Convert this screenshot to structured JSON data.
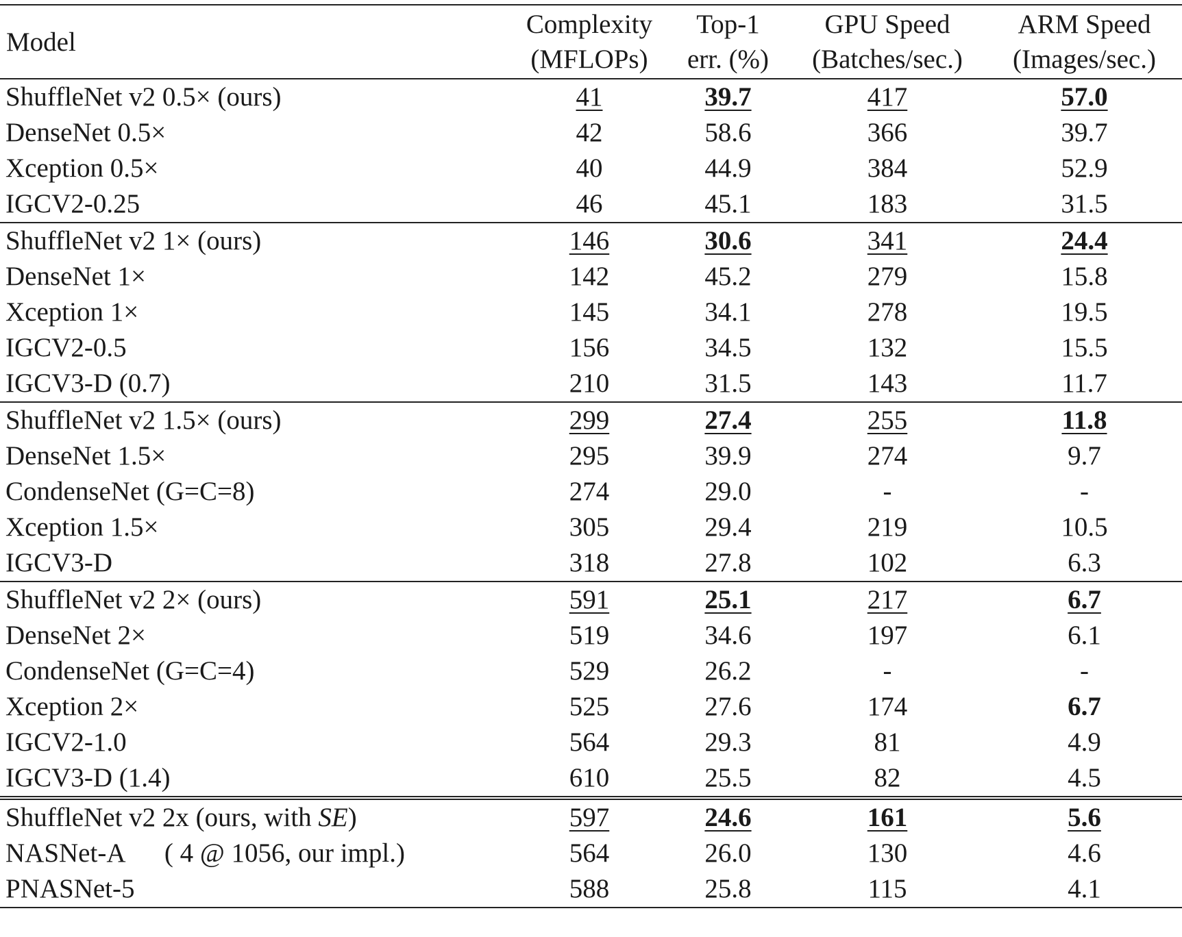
{
  "table": {
    "header": [
      "Model",
      [
        "Complexity",
        "(MFLOPs)"
      ],
      [
        "Top-1",
        "err. (%)"
      ],
      [
        "GPU Speed",
        "(Batches/sec.)"
      ],
      [
        "ARM Speed",
        "(Images/sec.)"
      ]
    ],
    "groups": [
      {
        "rows": [
          [
            "ShuffleNet v2 0.5× (ours)",
            {
              "text": "41",
              "underline": true
            },
            {
              "text": "39.7",
              "bold": true,
              "underline": true
            },
            {
              "text": "417",
              "underline": true
            },
            {
              "text": "57.0",
              "bold": true,
              "underline": true
            }
          ],
          [
            "DenseNet 0.5×",
            "42",
            "58.6",
            "366",
            "39.7"
          ],
          [
            "Xception 0.5×",
            "40",
            "44.9",
            "384",
            "52.9"
          ],
          [
            "IGCV2-0.25",
            "46",
            "45.1",
            "183",
            "31.5"
          ]
        ]
      },
      {
        "rows": [
          [
            "ShuffleNet v2 1× (ours)",
            {
              "text": "146",
              "underline": true
            },
            {
              "text": "30.6",
              "bold": true,
              "underline": true
            },
            {
              "text": "341",
              "underline": true
            },
            {
              "text": "24.4",
              "bold": true,
              "underline": true
            }
          ],
          [
            "DenseNet 1×",
            "142",
            "45.2",
            "279",
            "15.8"
          ],
          [
            "Xception 1×",
            "145",
            "34.1",
            "278",
            "19.5"
          ],
          [
            "IGCV2-0.5",
            "156",
            "34.5",
            "132",
            "15.5"
          ],
          [
            "IGCV3-D (0.7)",
            "210",
            "31.5",
            "143",
            "11.7"
          ]
        ]
      },
      {
        "rows": [
          [
            "ShuffleNet v2 1.5× (ours)",
            {
              "text": "299",
              "underline": true
            },
            {
              "text": "27.4",
              "bold": true,
              "underline": true
            },
            {
              "text": "255",
              "underline": true
            },
            {
              "text": "11.8",
              "bold": true,
              "underline": true
            }
          ],
          [
            "DenseNet 1.5×",
            "295",
            "39.9",
            "274",
            "9.7"
          ],
          [
            "CondenseNet (G=C=8)",
            "274",
            "29.0",
            "-",
            "-"
          ],
          [
            "Xception 1.5×",
            "305",
            "29.4",
            "219",
            "10.5"
          ],
          [
            "IGCV3-D",
            "318",
            "27.8",
            "102",
            "6.3"
          ]
        ]
      },
      {
        "rows": [
          [
            "ShuffleNet v2 2× (ours)",
            {
              "text": "591",
              "underline": true
            },
            {
              "text": "25.1",
              "bold": true,
              "underline": true
            },
            {
              "text": "217",
              "underline": true
            },
            {
              "text": "6.7",
              "bold": true,
              "underline": true
            }
          ],
          [
            "DenseNet 2×",
            "519",
            "34.6",
            "197",
            "6.1"
          ],
          [
            "CondenseNet (G=C=4)",
            "529",
            "26.2",
            "-",
            "-"
          ],
          [
            "Xception 2×",
            "525",
            "27.6",
            "174",
            {
              "text": "6.7",
              "bold": true
            }
          ],
          [
            "IGCV2-1.0",
            "564",
            "29.3",
            "81",
            "4.9"
          ],
          [
            "IGCV3-D (1.4)",
            "610",
            "25.5",
            "82",
            "4.5"
          ]
        ]
      },
      {
        "rows": [
          [
            [
              "ShuffleNet v2 2x (ours, with ",
              {
                "text": "SE",
                "italic": true
              },
              ")"
            ],
            {
              "text": "597",
              "underline": true
            },
            {
              "text": "24.6",
              "bold": true,
              "underline": true
            },
            {
              "text": "161",
              "bold": true,
              "underline": true
            },
            {
              "text": "5.6",
              "bold": true,
              "underline": true
            }
          ],
          [
            "NASNet-A      ( 4 @ 1056, our impl.)",
            "564",
            "26.0",
            "130",
            "4.6"
          ],
          [
            "PNASNet-5",
            "588",
            "25.8",
            "115",
            "4.1"
          ]
        ]
      }
    ]
  }
}
